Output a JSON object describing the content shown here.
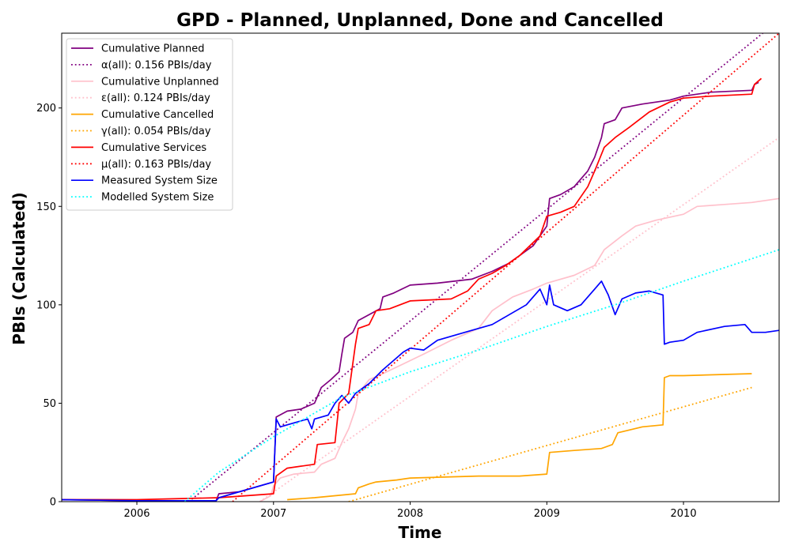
{
  "chart_data": {
    "type": "line",
    "title": "GPD - Planned, Unplanned, Done  and Cancelled",
    "xlabel": "Time",
    "ylabel": "PBIs (Calculated)",
    "xlim": [
      2005.45,
      2010.7
    ],
    "ylim": [
      0,
      238
    ],
    "x_ticks": [
      2006,
      2007,
      2008,
      2009,
      2010
    ],
    "x_tick_labels": [
      "2006",
      "2007",
      "2008",
      "2009",
      "2010"
    ],
    "y_ticks": [
      0,
      50,
      100,
      150,
      200
    ],
    "y_tick_labels": [
      "0",
      "50",
      "100",
      "150",
      "200"
    ],
    "grid": false,
    "legend_position": "top-left",
    "series": [
      {
        "name": "Cumulative Planned",
        "color": "#800080",
        "style": "solid",
        "points": [
          [
            2005.45,
            1
          ],
          [
            2006.0,
            0.5
          ],
          [
            2006.58,
            0.5
          ],
          [
            2006.6,
            4
          ],
          [
            2006.75,
            5
          ],
          [
            2006.95,
            9
          ],
          [
            2007.0,
            10
          ],
          [
            2007.02,
            43
          ],
          [
            2007.1,
            46
          ],
          [
            2007.2,
            47
          ],
          [
            2007.3,
            50
          ],
          [
            2007.35,
            58
          ],
          [
            2007.42,
            62
          ],
          [
            2007.48,
            66
          ],
          [
            2007.5,
            75
          ],
          [
            2007.52,
            83
          ],
          [
            2007.58,
            86
          ],
          [
            2007.62,
            92
          ],
          [
            2007.7,
            95
          ],
          [
            2007.78,
            98
          ],
          [
            2007.8,
            104
          ],
          [
            2007.88,
            106
          ],
          [
            2008.0,
            110
          ],
          [
            2008.2,
            111
          ],
          [
            2008.45,
            113
          ],
          [
            2008.6,
            117
          ],
          [
            2008.72,
            121
          ],
          [
            2008.8,
            125
          ],
          [
            2008.9,
            130
          ],
          [
            2008.95,
            135
          ],
          [
            2009.0,
            140
          ],
          [
            2009.02,
            154
          ],
          [
            2009.1,
            156
          ],
          [
            2009.2,
            160
          ],
          [
            2009.3,
            168
          ],
          [
            2009.35,
            175
          ],
          [
            2009.4,
            185
          ],
          [
            2009.42,
            192
          ],
          [
            2009.5,
            194
          ],
          [
            2009.55,
            200
          ],
          [
            2009.7,
            202
          ],
          [
            2009.9,
            204
          ],
          [
            2010.0,
            206
          ],
          [
            2010.2,
            208
          ],
          [
            2010.5,
            209
          ],
          [
            2010.52,
            212
          ],
          [
            2010.55,
            213
          ]
        ]
      },
      {
        "name": "α(all): 0.156 PBIs/day",
        "color": "#800080",
        "style": "dotted",
        "points": [
          [
            2006.38,
            0
          ],
          [
            2010.58,
            238
          ]
        ]
      },
      {
        "name": "Cumulative Unplanned",
        "color": "#ffc0cb",
        "style": "solid",
        "points": [
          [
            2006.9,
            0
          ],
          [
            2006.98,
            3
          ],
          [
            2007.0,
            8
          ],
          [
            2007.05,
            12
          ],
          [
            2007.15,
            14
          ],
          [
            2007.3,
            15
          ],
          [
            2007.35,
            19
          ],
          [
            2007.45,
            22
          ],
          [
            2007.5,
            30
          ],
          [
            2007.55,
            37
          ],
          [
            2007.6,
            47
          ],
          [
            2007.62,
            55
          ],
          [
            2007.7,
            62
          ],
          [
            2007.8,
            65
          ],
          [
            2007.95,
            70
          ],
          [
            2008.1,
            75
          ],
          [
            2008.3,
            82
          ],
          [
            2008.5,
            88
          ],
          [
            2008.6,
            97
          ],
          [
            2008.75,
            104
          ],
          [
            2008.9,
            108
          ],
          [
            2009.0,
            111
          ],
          [
            2009.2,
            115
          ],
          [
            2009.35,
            120
          ],
          [
            2009.42,
            128
          ],
          [
            2009.55,
            135
          ],
          [
            2009.65,
            140
          ],
          [
            2009.8,
            143
          ],
          [
            2010.0,
            146
          ],
          [
            2010.1,
            150
          ],
          [
            2010.3,
            151
          ],
          [
            2010.5,
            152
          ],
          [
            2010.7,
            154
          ]
        ]
      },
      {
        "name": "ε(all): 0.124 PBIs/day",
        "color": "#ffc0cb",
        "style": "dotted",
        "points": [
          [
            2006.9,
            0
          ],
          [
            2010.7,
            185
          ]
        ]
      },
      {
        "name": "Cumulative Cancelled",
        "color": "#ffa500",
        "style": "solid",
        "points": [
          [
            2007.1,
            1
          ],
          [
            2007.3,
            2
          ],
          [
            2007.45,
            3
          ],
          [
            2007.6,
            4
          ],
          [
            2007.62,
            7
          ],
          [
            2007.7,
            9
          ],
          [
            2007.75,
            10
          ],
          [
            2007.9,
            11
          ],
          [
            2008.0,
            12
          ],
          [
            2008.5,
            13
          ],
          [
            2008.8,
            13
          ],
          [
            2009.0,
            14
          ],
          [
            2009.02,
            25
          ],
          [
            2009.2,
            26
          ],
          [
            2009.4,
            27
          ],
          [
            2009.48,
            29
          ],
          [
            2009.52,
            35
          ],
          [
            2009.7,
            38
          ],
          [
            2009.85,
            39
          ],
          [
            2009.86,
            63
          ],
          [
            2009.9,
            64
          ],
          [
            2010.0,
            64
          ],
          [
            2010.5,
            65
          ]
        ]
      },
      {
        "name": "γ(all): 0.054 PBIs/day",
        "color": "#ffa500",
        "style": "dotted",
        "points": [
          [
            2007.55,
            0
          ],
          [
            2010.5,
            58
          ]
        ]
      },
      {
        "name": "Cumulative Services",
        "color": "#ff0000",
        "style": "solid",
        "points": [
          [
            2005.45,
            1
          ],
          [
            2006.0,
            1
          ],
          [
            2006.6,
            2
          ],
          [
            2007.0,
            4
          ],
          [
            2007.02,
            13
          ],
          [
            2007.1,
            17
          ],
          [
            2007.3,
            19
          ],
          [
            2007.32,
            29
          ],
          [
            2007.45,
            30
          ],
          [
            2007.48,
            50
          ],
          [
            2007.55,
            55
          ],
          [
            2007.6,
            80
          ],
          [
            2007.62,
            88
          ],
          [
            2007.7,
            90
          ],
          [
            2007.75,
            97
          ],
          [
            2007.85,
            98
          ],
          [
            2008.0,
            102
          ],
          [
            2008.3,
            103
          ],
          [
            2008.42,
            107
          ],
          [
            2008.5,
            113
          ],
          [
            2008.6,
            116
          ],
          [
            2008.7,
            120
          ],
          [
            2008.8,
            125
          ],
          [
            2008.95,
            135
          ],
          [
            2009.0,
            145
          ],
          [
            2009.1,
            147
          ],
          [
            2009.2,
            150
          ],
          [
            2009.3,
            160
          ],
          [
            2009.35,
            168
          ],
          [
            2009.42,
            180
          ],
          [
            2009.5,
            185
          ],
          [
            2009.6,
            190
          ],
          [
            2009.75,
            198
          ],
          [
            2009.9,
            203
          ],
          [
            2010.0,
            205
          ],
          [
            2010.2,
            206
          ],
          [
            2010.5,
            207
          ],
          [
            2010.52,
            212
          ],
          [
            2010.57,
            215
          ]
        ]
      },
      {
        "name": "μ(all): 0.163 PBIs/day",
        "color": "#ff0000",
        "style": "dotted",
        "points": [
          [
            2006.7,
            0
          ],
          [
            2010.7,
            238
          ]
        ]
      },
      {
        "name": "Measured System Size",
        "color": "#0000ff",
        "style": "solid",
        "points": [
          [
            2005.45,
            1
          ],
          [
            2006.0,
            0.5
          ],
          [
            2006.58,
            0.5
          ],
          [
            2006.6,
            2
          ],
          [
            2006.9,
            8
          ],
          [
            2007.0,
            10
          ],
          [
            2007.02,
            42
          ],
          [
            2007.05,
            38
          ],
          [
            2007.15,
            40
          ],
          [
            2007.25,
            42
          ],
          [
            2007.28,
            37
          ],
          [
            2007.3,
            42
          ],
          [
            2007.4,
            44
          ],
          [
            2007.45,
            50
          ],
          [
            2007.5,
            54
          ],
          [
            2007.55,
            50
          ],
          [
            2007.6,
            55
          ],
          [
            2007.7,
            60
          ],
          [
            2007.8,
            67
          ],
          [
            2007.9,
            73
          ],
          [
            2007.95,
            76
          ],
          [
            2008.0,
            78
          ],
          [
            2008.1,
            77
          ],
          [
            2008.2,
            82
          ],
          [
            2008.4,
            86
          ],
          [
            2008.6,
            90
          ],
          [
            2008.7,
            94
          ],
          [
            2008.75,
            96
          ],
          [
            2008.85,
            100
          ],
          [
            2008.95,
            108
          ],
          [
            2009.0,
            100
          ],
          [
            2009.02,
            110
          ],
          [
            2009.05,
            100
          ],
          [
            2009.15,
            97
          ],
          [
            2009.25,
            100
          ],
          [
            2009.35,
            108
          ],
          [
            2009.4,
            112
          ],
          [
            2009.45,
            105
          ],
          [
            2009.5,
            95
          ],
          [
            2009.55,
            103
          ],
          [
            2009.65,
            106
          ],
          [
            2009.75,
            107
          ],
          [
            2009.85,
            105
          ],
          [
            2009.86,
            80
          ],
          [
            2009.9,
            81
          ],
          [
            2010.0,
            82
          ],
          [
            2010.1,
            86
          ],
          [
            2010.3,
            89
          ],
          [
            2010.45,
            90
          ],
          [
            2010.5,
            86
          ],
          [
            2010.6,
            86
          ],
          [
            2010.7,
            87
          ]
        ]
      },
      {
        "name": "Modelled System Size",
        "color": "#00ffff",
        "style": "dotted",
        "points": [
          [
            2006.35,
            0
          ],
          [
            2006.6,
            15
          ],
          [
            2007.0,
            33
          ],
          [
            2007.5,
            53
          ],
          [
            2008.0,
            66
          ],
          [
            2008.5,
            77
          ],
          [
            2009.0,
            89
          ],
          [
            2009.5,
            100
          ],
          [
            2010.0,
            112
          ],
          [
            2010.7,
            128
          ]
        ]
      }
    ]
  }
}
